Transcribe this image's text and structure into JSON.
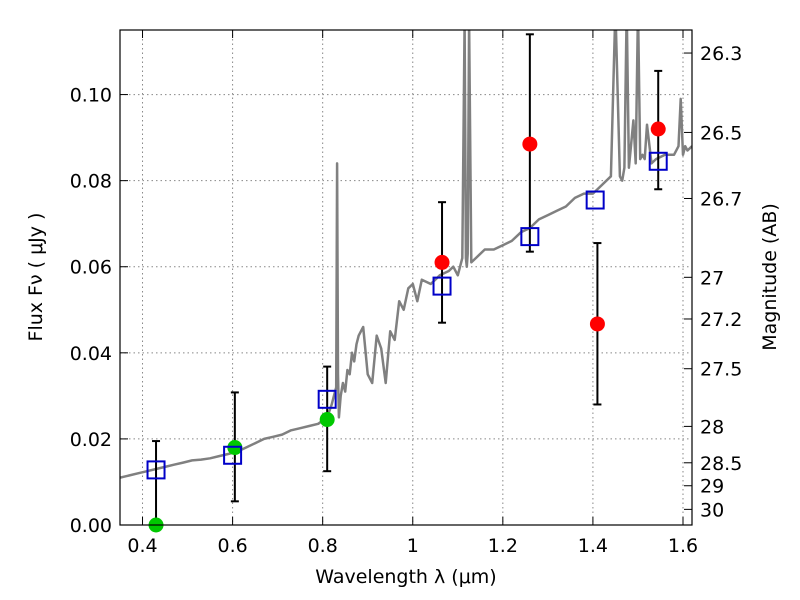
{
  "chart_data": {
    "type": "scatter",
    "xlabel": "Wavelength  λ (μm)",
    "ylabel": "Flux  Fν  ( μJy )",
    "ylabel_right": "Magnitude (AB)",
    "xlim": [
      0.35,
      1.62
    ],
    "ylim": [
      0.0,
      0.115
    ],
    "grid": true,
    "x_ticks": [
      {
        "value": 0.4,
        "label": "0.4"
      },
      {
        "value": 0.6,
        "label": "0.6"
      },
      {
        "value": 0.8,
        "label": "0.8"
      },
      {
        "value": 1.0,
        "label": "1"
      },
      {
        "value": 1.2,
        "label": "1.2"
      },
      {
        "value": 1.4,
        "label": "1.4"
      },
      {
        "value": 1.6,
        "label": "1.6"
      }
    ],
    "y_ticks": [
      {
        "value": 0.0,
        "label": "0.00"
      },
      {
        "value": 0.02,
        "label": "0.02"
      },
      {
        "value": 0.04,
        "label": "0.04"
      },
      {
        "value": 0.06,
        "label": "0.06"
      },
      {
        "value": 0.08,
        "label": "0.08"
      },
      {
        "value": 0.1,
        "label": "0.10"
      }
    ],
    "mag_ticks": [
      {
        "mag": 26.3,
        "label": "26.3"
      },
      {
        "mag": 26.5,
        "label": "26.5"
      },
      {
        "mag": 26.7,
        "label": "26.7"
      },
      {
        "mag": 27.0,
        "label": "27"
      },
      {
        "mag": 27.2,
        "label": "27.2"
      },
      {
        "mag": 27.5,
        "label": "27.5"
      },
      {
        "mag": 28.0,
        "label": "28"
      },
      {
        "mag": 28.5,
        "label": "28.5"
      },
      {
        "mag": 29.0,
        "label": "29"
      },
      {
        "mag": 30.0,
        "label": "30"
      }
    ],
    "colors": {
      "model": "#808080",
      "observed_optical": "#00c800",
      "observed_ir": "#ff0000",
      "model_band": "#0000c8",
      "errorbar": "#000000",
      "grid": "#888888"
    },
    "series": [
      {
        "name": "model-spectrum",
        "kind": "line",
        "x": [
          0.35,
          0.37,
          0.39,
          0.41,
          0.43,
          0.45,
          0.47,
          0.49,
          0.51,
          0.53,
          0.55,
          0.57,
          0.59,
          0.61,
          0.63,
          0.65,
          0.67,
          0.69,
          0.71,
          0.73,
          0.75,
          0.77,
          0.79,
          0.81,
          0.82,
          0.825,
          0.83,
          0.832,
          0.834,
          0.836,
          0.84,
          0.845,
          0.85,
          0.855,
          0.86,
          0.865,
          0.87,
          0.875,
          0.88,
          0.89,
          0.9,
          0.91,
          0.92,
          0.93,
          0.94,
          0.95,
          0.96,
          0.97,
          0.98,
          0.99,
          1.0,
          1.01,
          1.02,
          1.04,
          1.06,
          1.08,
          1.09,
          1.1,
          1.11,
          1.115,
          1.118,
          1.12,
          1.122,
          1.125,
          1.13,
          1.14,
          1.16,
          1.18,
          1.2,
          1.22,
          1.24,
          1.26,
          1.28,
          1.3,
          1.32,
          1.34,
          1.36,
          1.38,
          1.4,
          1.42,
          1.44,
          1.45,
          1.46,
          1.465,
          1.47,
          1.475,
          1.48,
          1.49,
          1.495,
          1.5,
          1.505,
          1.51,
          1.515,
          1.52,
          1.53,
          1.54,
          1.56,
          1.58,
          1.59,
          1.595,
          1.6,
          1.605,
          1.61,
          1.62
        ],
        "y": [
          0.011,
          0.0115,
          0.012,
          0.0125,
          0.013,
          0.0135,
          0.014,
          0.0145,
          0.015,
          0.0152,
          0.0155,
          0.016,
          0.0165,
          0.017,
          0.018,
          0.019,
          0.02,
          0.0205,
          0.021,
          0.022,
          0.0225,
          0.023,
          0.0235,
          0.025,
          0.028,
          0.03,
          0.032,
          0.084,
          0.035,
          0.025,
          0.03,
          0.033,
          0.031,
          0.036,
          0.035,
          0.04,
          0.038,
          0.042,
          0.044,
          0.046,
          0.035,
          0.033,
          0.044,
          0.041,
          0.033,
          0.045,
          0.043,
          0.052,
          0.05,
          0.055,
          0.056,
          0.052,
          0.057,
          0.056,
          0.058,
          0.059,
          0.06,
          0.058,
          0.062,
          0.117,
          0.062,
          0.06,
          0.063,
          0.117,
          0.061,
          0.062,
          0.064,
          0.064,
          0.065,
          0.066,
          0.068,
          0.069,
          0.071,
          0.072,
          0.073,
          0.074,
          0.076,
          0.077,
          0.077,
          0.079,
          0.081,
          0.12,
          0.081,
          0.08,
          0.083,
          0.12,
          0.083,
          0.094,
          0.084,
          0.12,
          0.085,
          0.086,
          0.085,
          0.093,
          0.084,
          0.085,
          0.086,
          0.086,
          0.088,
          0.099,
          0.086,
          0.088,
          0.087,
          0.088
        ]
      },
      {
        "name": "observed-optical",
        "kind": "points",
        "points": [
          {
            "x": 0.43,
            "y": 0.0,
            "lo": 0.0,
            "hi": 0.0195
          },
          {
            "x": 0.605,
            "y": 0.018,
            "lo": 0.0055,
            "hi": 0.0308
          },
          {
            "x": 0.81,
            "y": 0.0245,
            "lo": 0.0125,
            "hi": 0.0368
          }
        ]
      },
      {
        "name": "observed-ir",
        "kind": "points",
        "points": [
          {
            "x": 1.065,
            "y": 0.061,
            "lo": 0.047,
            "hi": 0.075
          },
          {
            "x": 1.26,
            "y": 0.0885,
            "lo": 0.0635,
            "hi": 0.114
          },
          {
            "x": 1.41,
            "y": 0.0467,
            "lo": 0.028,
            "hi": 0.0655
          },
          {
            "x": 1.545,
            "y": 0.092,
            "lo": 0.078,
            "hi": 0.1055
          }
        ]
      },
      {
        "name": "model-band-flux",
        "kind": "squares",
        "points": [
          {
            "x": 0.43,
            "y": 0.0128
          },
          {
            "x": 0.6,
            "y": 0.0162
          },
          {
            "x": 0.81,
            "y": 0.0292
          },
          {
            "x": 1.065,
            "y": 0.0555
          },
          {
            "x": 1.26,
            "y": 0.067
          },
          {
            "x": 1.405,
            "y": 0.0755
          },
          {
            "x": 1.545,
            "y": 0.0845
          }
        ]
      }
    ]
  }
}
